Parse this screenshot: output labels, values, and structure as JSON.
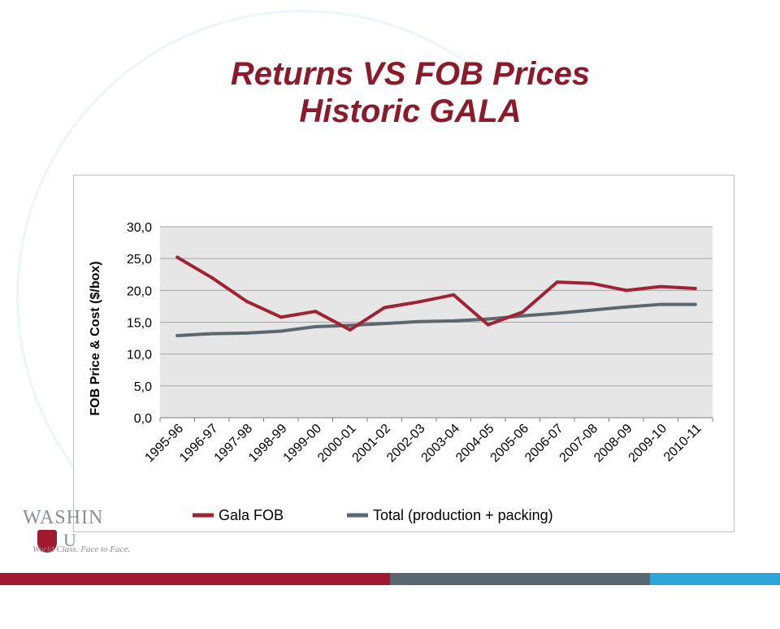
{
  "page": {
    "title_line1": "Returns VS FOB Prices",
    "title_line2": "Historic GALA"
  },
  "logo": {
    "wordmark": "WASHIN",
    "wordmark2": "U",
    "tagline": "World Class. Face to Face."
  },
  "colors": {
    "title": "#8b1a2a",
    "gala": "#a02235",
    "total": "#5c6870",
    "plot_bg": "#e6e6e6",
    "footer_red": "#a0192f",
    "footer_gray": "#5b6770",
    "footer_blue": "#2aa6d8"
  },
  "chart_data": {
    "type": "line",
    "title": "",
    "xlabel": "",
    "ylabel": "FOB Price & Cost  ($/box)",
    "categories": [
      "1995-96",
      "1996-97",
      "1997-98",
      "1998-99",
      "1999-00",
      "2000-01",
      "2001-02",
      "2002-03",
      "2003-04",
      "2004-05",
      "2005-06",
      "2006-07",
      "2007-08",
      "2008-09",
      "2009-10",
      "2010-11"
    ],
    "ylim": [
      0,
      30
    ],
    "yticks": [
      "0,0",
      "5,0",
      "10,0",
      "15,0",
      "20,0",
      "25,0",
      "30,0"
    ],
    "grid": true,
    "legend_position": "bottom",
    "series": [
      {
        "name": "Gala FOB",
        "color": "#a02235",
        "values": [
          25.2,
          22.0,
          18.3,
          15.8,
          16.7,
          13.8,
          17.3,
          18.2,
          19.3,
          14.6,
          16.6,
          21.3,
          21.1,
          20.0,
          20.6,
          20.3
        ]
      },
      {
        "name": "Total (production + packing)",
        "color": "#5c6870",
        "values": [
          12.9,
          13.2,
          13.3,
          13.6,
          14.3,
          14.5,
          14.8,
          15.1,
          15.2,
          15.5,
          16.0,
          16.4,
          16.9,
          17.4,
          17.8,
          17.8
        ]
      }
    ]
  }
}
